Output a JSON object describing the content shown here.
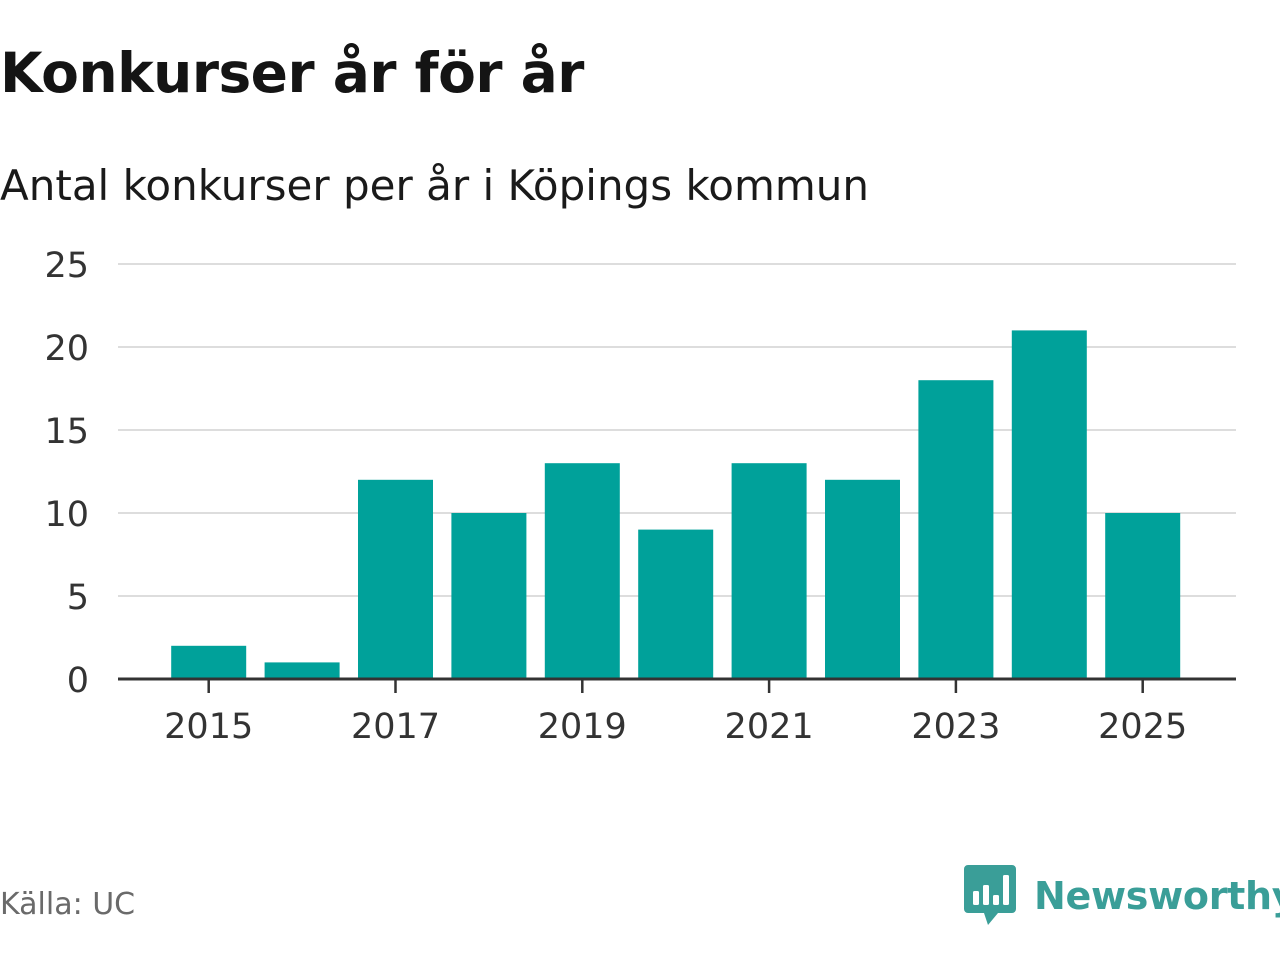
{
  "header": {
    "title": "Konkurser år för år",
    "subtitle": "Antal konkurser per år i Köpings kommun"
  },
  "footer": {
    "source": "Källa: UC",
    "brand": "Newsworthy"
  },
  "colors": {
    "bar": "#00a19a",
    "grid": "#dddddd",
    "axis": "#333333",
    "tick_text": "#333333",
    "brand": "#3a9e98"
  },
  "chart_data": {
    "type": "bar",
    "title": "Konkurser år för år",
    "subtitle": "Antal konkurser per år i Köpings kommun",
    "xlabel": "",
    "ylabel": "",
    "categories": [
      "2015",
      "2016",
      "2017",
      "2018",
      "2019",
      "2020",
      "2021",
      "2022",
      "2023",
      "2024",
      "2025"
    ],
    "values": [
      2,
      1,
      12,
      10,
      13,
      9,
      13,
      12,
      18,
      21,
      10
    ],
    "x_tick_labels": [
      "2015",
      "2017",
      "2019",
      "2021",
      "2023",
      "2025"
    ],
    "ylim": [
      0,
      25
    ],
    "y_ticks": [
      0,
      5,
      10,
      15,
      20,
      25
    ],
    "grid": true,
    "legend": "none"
  }
}
